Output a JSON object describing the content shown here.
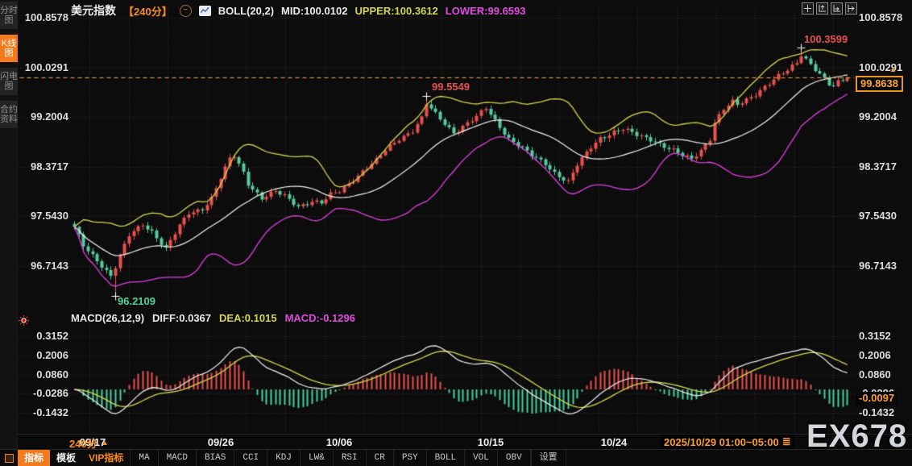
{
  "header": {
    "symbol": "美元指数",
    "period": "【240分】",
    "collapse_glyph": "−",
    "boll": "BOLL(20,2)",
    "mid": "MID:100.0102",
    "upper": "UPPER:100.3612",
    "lower": "LOWER:99.6593"
  },
  "macd_header": {
    "name": "MACD(26,12,9)",
    "diff": "DIFF:0.0367",
    "dea": "DEA:0.1015",
    "macd": "MACD:-0.1296"
  },
  "sidebar": {
    "tabs": [
      {
        "label": "分时图",
        "active": false
      },
      {
        "label": "K线图",
        "active": true
      },
      {
        "label": "闪电图",
        "active": false
      },
      {
        "label": "合约资料",
        "active": false
      }
    ]
  },
  "badges": {
    "price": "99.8638",
    "macd": "-0.0097",
    "up_arrow": "▲"
  },
  "annotations": {
    "high": "100.3599",
    "peak": "99.5549",
    "low": "96.2109"
  },
  "x_axis": {
    "period_label": "240分",
    "period_arrow": "▲",
    "date_range": "2025/10/29 01:00~05:00",
    "menu_glyph": "≣"
  },
  "watermark": "EX678",
  "toolbar": {
    "main": [
      {
        "label": "指标",
        "style": "active"
      },
      {
        "label": "模板",
        "style": "plain"
      },
      {
        "label": "VIP指标",
        "style": "vip"
      }
    ],
    "indicators": [
      "MA",
      "MACD",
      "BIAS",
      "CCI",
      "KDJ",
      "LW&",
      "RSI",
      "CR",
      "PSY",
      "BOLL",
      "VOL",
      "OBV"
    ],
    "settings": "设置"
  },
  "chart_data": {
    "type": "candlestick",
    "title": "美元指数 240分 K线图 + BOLL + MACD",
    "panels": [
      "price",
      "macd"
    ],
    "price_ticks": [
      100.8578,
      100.0291,
      99.2004,
      98.3717,
      97.543,
      96.7143
    ],
    "macd_ticks": [
      0.3152,
      0.2006,
      0.086,
      -0.0286,
      -0.1432
    ],
    "x_ticks": [
      {
        "label": "09/17",
        "i": 4
      },
      {
        "label": "09/26",
        "i": 32
      },
      {
        "label": "10/06",
        "i": 58
      },
      {
        "label": "10/15",
        "i": 91
      },
      {
        "label": "10/24",
        "i": 118
      }
    ],
    "current_price": 99.8638,
    "macd_value": -0.0097,
    "boll": {
      "period": 20,
      "mult": 2,
      "mid": 100.0102,
      "upper": 100.3612,
      "lower": 99.6593
    },
    "macd_params": {
      "fast": 12,
      "slow": 26,
      "signal": 9,
      "diff": 0.0367,
      "dea": 0.1015,
      "bar": -0.1296
    },
    "num_candles": 170,
    "close_anchors": [
      [
        0,
        97.35
      ],
      [
        2,
        97.05
      ],
      [
        5,
        96.82
      ],
      [
        8,
        96.55
      ],
      [
        9,
        96.7
      ],
      [
        10,
        96.88
      ],
      [
        12,
        97.22
      ],
      [
        15,
        97.42
      ],
      [
        17,
        97.3
      ],
      [
        20,
        97.0
      ],
      [
        23,
        97.38
      ],
      [
        25,
        97.6
      ],
      [
        28,
        97.68
      ],
      [
        30,
        97.85
      ],
      [
        32,
        98.18
      ],
      [
        34,
        98.5
      ],
      [
        35,
        98.55
      ],
      [
        37,
        98.28
      ],
      [
        38,
        98.1
      ],
      [
        41,
        97.85
      ],
      [
        44,
        97.95
      ],
      [
        46,
        97.88
      ],
      [
        49,
        97.72
      ],
      [
        52,
        97.8
      ],
      [
        54,
        97.76
      ],
      [
        56,
        97.9
      ],
      [
        58,
        97.97
      ],
      [
        60,
        98.1
      ],
      [
        63,
        98.3
      ],
      [
        66,
        98.47
      ],
      [
        68,
        98.65
      ],
      [
        71,
        98.85
      ],
      [
        74,
        98.98
      ],
      [
        76,
        99.18
      ],
      [
        77,
        99.42
      ],
      [
        79,
        99.25
      ],
      [
        81,
        99.1
      ],
      [
        83,
        98.95
      ],
      [
        85,
        99.05
      ],
      [
        88,
        99.2
      ],
      [
        90,
        99.35
      ],
      [
        93,
        99.05
      ],
      [
        95,
        98.85
      ],
      [
        98,
        98.68
      ],
      [
        100,
        98.55
      ],
      [
        103,
        98.43
      ],
      [
        105,
        98.28
      ],
      [
        108,
        98.12
      ],
      [
        110,
        98.4
      ],
      [
        113,
        98.7
      ],
      [
        115,
        98.86
      ],
      [
        118,
        98.96
      ],
      [
        120,
        99.0
      ],
      [
        123,
        98.9
      ],
      [
        126,
        98.84
      ],
      [
        128,
        98.76
      ],
      [
        131,
        98.64
      ],
      [
        133,
        98.55
      ],
      [
        135,
        98.5
      ],
      [
        137,
        98.66
      ],
      [
        139,
        98.85
      ],
      [
        140,
        99.12
      ],
      [
        142,
        99.33
      ],
      [
        144,
        99.45
      ],
      [
        145,
        99.4
      ],
      [
        147,
        99.5
      ],
      [
        149,
        99.6
      ],
      [
        151,
        99.72
      ],
      [
        153,
        99.82
      ],
      [
        154,
        99.88
      ],
      [
        156,
        99.98
      ],
      [
        158,
        100.12
      ],
      [
        159,
        100.26
      ],
      [
        161,
        100.1
      ],
      [
        163,
        99.92
      ],
      [
        165,
        99.74
      ],
      [
        166,
        99.7
      ],
      [
        167,
        99.78
      ],
      [
        168,
        99.82
      ],
      [
        169,
        99.8638
      ]
    ],
    "special_points": [
      {
        "i": 9,
        "type": "low",
        "value": 96.2109
      },
      {
        "i": 77,
        "type": "high",
        "value": 99.5549
      },
      {
        "i": 159,
        "type": "high",
        "value": 100.3599
      }
    ],
    "colors": {
      "background": "#0c0c0c",
      "up": "#e9504e",
      "down": "#55cd9e",
      "boll_mid": "#f2f2f2",
      "boll_upper": "#d6d64a",
      "boll_lower": "#e23ee2",
      "diff_line": "#f2f2f2",
      "dea_line": "#d6d64a",
      "hist_up": "#e9504e",
      "hist_down": "#40cfa0",
      "grid": "#8c8c8c",
      "price_line": "#ff9d2e"
    }
  }
}
